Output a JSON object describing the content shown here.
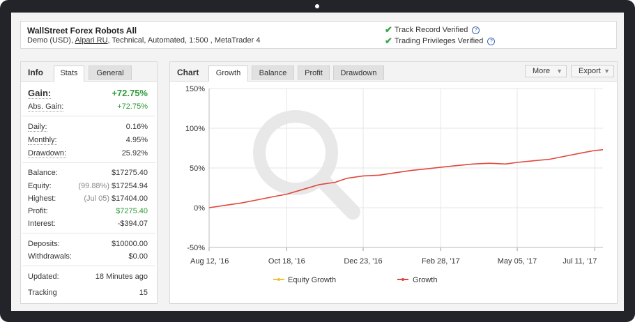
{
  "header": {
    "system_name": "WallStreet Forex Robots All",
    "desc_prefix": "Demo (USD), ",
    "broker": "Alpari RU",
    "desc_suffix": ", Technical, Automated, 1:500 , MetaTrader 4",
    "verifications": [
      "Track Record Verified",
      "Trading Privileges Verified"
    ]
  },
  "info": {
    "title": "Info",
    "tabs": [
      "Stats",
      "General"
    ],
    "gain_label": "Gain:",
    "gain_value": "+72.75%",
    "abs_gain_label": "Abs. Gain:",
    "abs_gain_value": "+72.75%",
    "daily_label": "Daily:",
    "daily_value": "0.16%",
    "monthly_label": "Monthly:",
    "monthly_value": "4.95%",
    "drawdown_label": "Drawdown:",
    "drawdown_value": "25.92%",
    "balance_label": "Balance:",
    "balance_value": "$17275.40",
    "equity_label": "Equity:",
    "equity_pct": "(99.88%)",
    "equity_value": "$17254.94",
    "highest_label": "Highest:",
    "highest_date": "(Jul 05)",
    "highest_value": "$17404.00",
    "profit_label": "Profit:",
    "profit_value": "$7275.40",
    "interest_label": "Interest:",
    "interest_value": "-$394.07",
    "deposits_label": "Deposits:",
    "deposits_value": "$10000.00",
    "withdrawals_label": "Withdrawals:",
    "withdrawals_value": "$0.00",
    "updated_label": "Updated:",
    "updated_value": "18 Minutes ago",
    "tracking_label": "Tracking",
    "tracking_value": "15"
  },
  "chart_panel": {
    "title": "Chart",
    "tabs": [
      "Growth",
      "Balance",
      "Profit",
      "Drawdown"
    ],
    "more_label": "More",
    "export_label": "Export"
  },
  "colors": {
    "positive": "#2e9b3a",
    "growth_line": "#e0463c",
    "equity_line": "#f2c12e",
    "check": "#3aa847"
  },
  "chart_data": {
    "type": "line",
    "x_tick_labels": [
      "Aug 12, '16",
      "Oct 18, '16",
      "Dec 23, '16",
      "Feb 28, '17",
      "May 05, '17",
      "Jul 11, '17"
    ],
    "x": [
      "2016-08-12",
      "2016-08-26",
      "2016-09-09",
      "2016-09-23",
      "2016-10-07",
      "2016-10-18",
      "2016-11-01",
      "2016-11-15",
      "2016-11-29",
      "2016-12-09",
      "2016-12-23",
      "2017-01-06",
      "2017-01-20",
      "2017-02-03",
      "2017-02-17",
      "2017-02-28",
      "2017-03-14",
      "2017-03-28",
      "2017-04-11",
      "2017-04-25",
      "2017-05-05",
      "2017-05-19",
      "2017-06-02",
      "2017-06-16",
      "2017-06-30",
      "2017-07-11",
      "2017-07-18"
    ],
    "series": [
      {
        "name": "Growth",
        "values": [
          0,
          3,
          6,
          10,
          14,
          17,
          23,
          29,
          32,
          37,
          40,
          41,
          44,
          47,
          49,
          51,
          53,
          55,
          56,
          55,
          57,
          59,
          61,
          65,
          69,
          72,
          73
        ]
      },
      {
        "name": "Equity Growth",
        "values": [
          0,
          3,
          6,
          10,
          14,
          17,
          23,
          29,
          32,
          37,
          40,
          41,
          44,
          47,
          49,
          51,
          53,
          55,
          56,
          55,
          57,
          59,
          61,
          65,
          69,
          72,
          73
        ]
      }
    ],
    "y_ticks": [
      -50,
      0,
      50,
      100,
      150
    ],
    "y_tick_labels": [
      "-50%",
      "0%",
      "50%",
      "100%",
      "150%"
    ],
    "ylim": [
      -50,
      150
    ],
    "grid": true,
    "legend_position": "bottom"
  }
}
